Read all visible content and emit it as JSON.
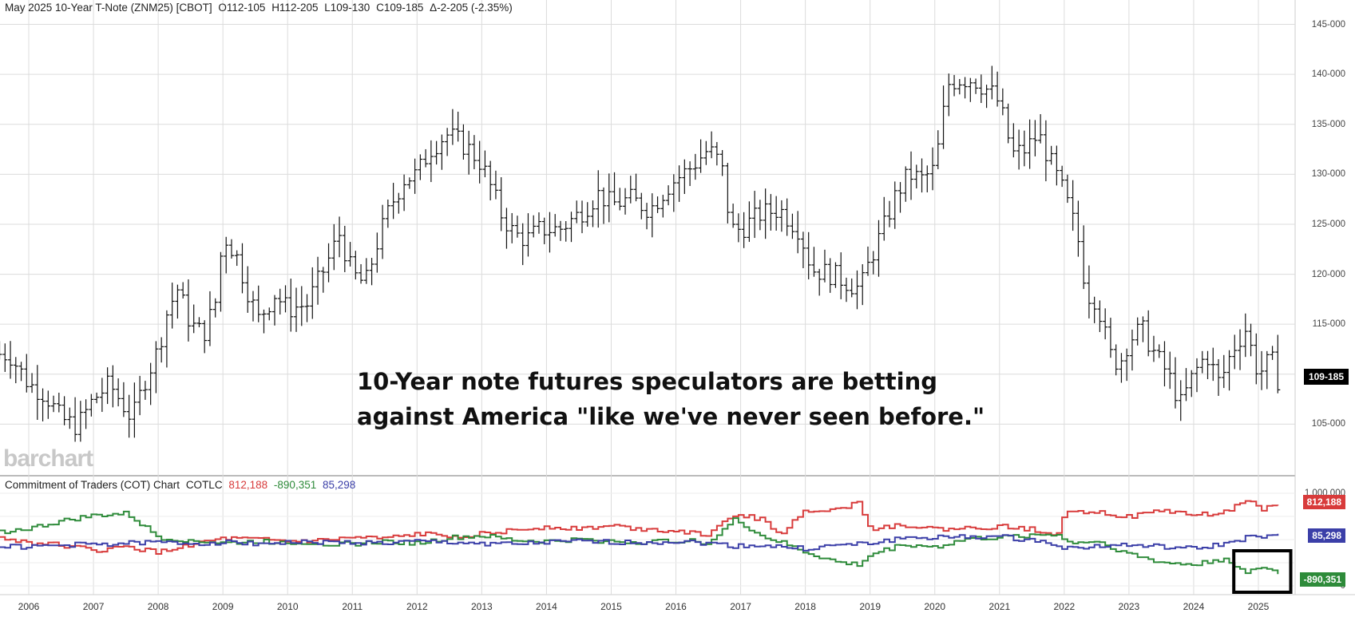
{
  "header": {
    "contract": "May 2025 10-Year T-Note (ZNM25) [CBOT]",
    "open": "O112-105",
    "high": "H112-205",
    "low": "L109-130",
    "close": "C109-185",
    "change": "Δ-2-205 (-2.35%)"
  },
  "annotation": {
    "line1": "10-Year note futures speculators are betting",
    "line2": "against America \"like we've never seen before.\""
  },
  "logo": "barchart",
  "price_tag": "109-185",
  "cot": {
    "title": "Commitment of Traders (COT) Chart",
    "code": "COTLC",
    "values": [
      {
        "name": "red",
        "label": "812,188",
        "color": "#d83b3b"
      },
      {
        "name": "green",
        "label": "-890,351",
        "color": "#2e8b3a"
      },
      {
        "name": "blue",
        "label": "85,298",
        "color": "#3b3fa8"
      }
    ],
    "axis_label_top": "1,000,000",
    "axis_label_bottom": "0"
  },
  "chart_data": [
    {
      "type": "line",
      "subtype": "ohlc-monthly-bars",
      "title": "May 2025 10-Year T-Note (ZNM25) [CBOT]",
      "x": [
        2005.7,
        2006.0,
        2006.25,
        2006.5,
        2006.75,
        2007.0,
        2007.25,
        2007.45,
        2007.6,
        2007.8,
        2008.0,
        2008.15,
        2008.3,
        2008.5,
        2008.7,
        2008.9,
        2009.0,
        2009.2,
        2009.4,
        2009.55,
        2009.8,
        2010.0,
        2010.3,
        2010.6,
        2010.8,
        2011.0,
        2011.2,
        2011.4,
        2011.6,
        2011.8,
        2012.0,
        2012.2,
        2012.45,
        2012.6,
        2012.8,
        2013.0,
        2013.3,
        2013.5,
        2013.7,
        2013.9,
        2014.2,
        2014.5,
        2014.8,
        2015.0,
        2015.3,
        2015.6,
        2015.9,
        2016.2,
        2016.5,
        2016.7,
        2016.85,
        2017.0,
        2017.3,
        2017.6,
        2017.9,
        2018.1,
        2018.4,
        2018.7,
        2018.85,
        2019.0,
        2019.2,
        2019.4,
        2019.6,
        2019.8,
        2020.0,
        2020.2,
        2020.35,
        2020.6,
        2020.9,
        2021.0,
        2021.2,
        2021.4,
        2021.6,
        2021.8,
        2022.0,
        2022.2,
        2022.35,
        2022.5,
        2022.7,
        2022.85,
        2023.0,
        2023.2,
        2023.4,
        2023.6,
        2023.8,
        2024.0,
        2024.2,
        2024.4,
        2024.6,
        2024.8,
        2025.0,
        2025.2,
        2025.3
      ],
      "close": [
        112.0,
        109.0,
        108.0,
        105.5,
        104.8,
        107.5,
        109.0,
        107.0,
        105.5,
        109.5,
        112.5,
        116.5,
        118.5,
        115.0,
        114.0,
        117.5,
        124.0,
        122.0,
        118.0,
        115.5,
        118.0,
        116.5,
        117.0,
        121.0,
        124.0,
        120.0,
        119.0,
        123.5,
        127.0,
        129.5,
        130.0,
        132.5,
        134.0,
        133.5,
        132.5,
        131.0,
        126.0,
        124.0,
        123.5,
        124.5,
        124.5,
        126.0,
        128.0,
        127.0,
        127.5,
        126.5,
        129.0,
        130.5,
        132.5,
        131.0,
        124.5,
        124.5,
        126.0,
        126.5,
        124.5,
        120.5,
        120.0,
        119.0,
        118.5,
        121.5,
        124.5,
        128.0,
        130.0,
        129.5,
        130.5,
        139.0,
        139.5,
        139.5,
        138.0,
        137.0,
        132.0,
        132.5,
        134.0,
        131.0,
        128.0,
        124.0,
        118.0,
        117.5,
        112.0,
        111.0,
        113.5,
        114.5,
        112.0,
        110.0,
        107.0,
        110.0,
        112.0,
        109.0,
        112.5,
        114.5,
        110.0,
        111.5,
        109.5
      ],
      "ylim": [
        100,
        146
      ],
      "yticks": [
        "105-000",
        "110-000",
        "115-000",
        "120-000",
        "125-000",
        "130-000",
        "135-000",
        "140-000",
        "145-000"
      ]
    },
    {
      "type": "line",
      "subtype": "step",
      "title": "Commitment of Traders (COT) Chart",
      "x": [
        2005.5,
        2006.0,
        2006.5,
        2007.0,
        2007.5,
        2008.0,
        2008.5,
        2009.0,
        2009.5,
        2010.0,
        2010.5,
        2011.0,
        2011.5,
        2012.0,
        2012.5,
        2013.0,
        2013.5,
        2014.0,
        2014.5,
        2015.0,
        2015.5,
        2016.0,
        2016.5,
        2016.9,
        2017.3,
        2017.6,
        2018.0,
        2018.5,
        2018.8,
        2019.0,
        2019.5,
        2020.0,
        2020.5,
        2021.0,
        2021.5,
        2021.9,
        2022.0,
        2022.5,
        2023.0,
        2023.5,
        2024.0,
        2024.5,
        2024.8,
        2025.0,
        2025.3
      ],
      "series": [
        {
          "name": "red",
          "color": "#d83b3b",
          "values": [
            520,
            470,
            440,
            380,
            420,
            360,
            450,
            510,
            500,
            480,
            490,
            520,
            510,
            560,
            540,
            560,
            600,
            640,
            620,
            650,
            610,
            600,
            550,
            780,
            720,
            560,
            820,
            830,
            900,
            620,
            660,
            610,
            620,
            640,
            610,
            560,
            820,
            800,
            740,
            820,
            760,
            800,
            940,
            830,
            860
          ]
        },
        {
          "name": "green",
          "color": "#2e8b3a",
          "values": [
            580,
            620,
            700,
            760,
            780,
            520,
            490,
            460,
            480,
            470,
            460,
            450,
            480,
            460,
            520,
            540,
            490,
            480,
            500,
            480,
            470,
            490,
            470,
            720,
            540,
            470,
            360,
            250,
            230,
            340,
            450,
            420,
            510,
            520,
            550,
            560,
            470,
            480,
            340,
            250,
            230,
            300,
            120,
            210,
            140
          ]
        },
        {
          "name": "blue",
          "color": "#3b3fa8",
          "values": [
            430,
            420,
            440,
            450,
            460,
            470,
            460,
            470,
            460,
            470,
            470,
            470,
            460,
            480,
            470,
            460,
            450,
            470,
            480,
            470,
            470,
            480,
            460,
            430,
            440,
            420,
            400,
            440,
            450,
            460,
            520,
            520,
            530,
            530,
            490,
            450,
            400,
            430,
            440,
            420,
            400,
            460,
            520,
            530,
            540
          ]
        }
      ],
      "ylim": [
        0,
        1000
      ],
      "ylabel": ""
    }
  ],
  "x_axis": {
    "ticks": [
      "2006",
      "2007",
      "2008",
      "2009",
      "2010",
      "2011",
      "2012",
      "2013",
      "2014",
      "2015",
      "2016",
      "2017",
      "2018",
      "2019",
      "2020",
      "2021",
      "2022",
      "2023",
      "2024",
      "2025"
    ]
  },
  "colors": {
    "grid": "#dcdcdc",
    "bars": "#111111",
    "highlight_box": "#000000"
  }
}
